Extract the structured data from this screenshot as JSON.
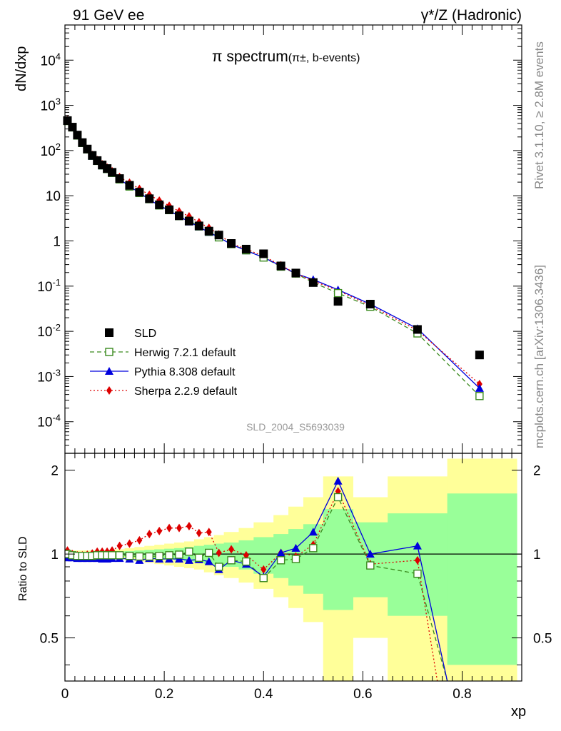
{
  "header": {
    "left": "91 GeV ee",
    "right_main": "γ*/Z",
    "right_paren": " (Hadronic)"
  },
  "side_text": {
    "rivet": "Rivet 3.1.10, ≥ 2.8M events",
    "mcplots": "mcplots.cern.ch [arXiv:1306.3436]"
  },
  "watermark": "SLD_2004_S5693039",
  "colors": {
    "data": "#000000",
    "herwig": "#3a8a1e",
    "pythia": "#0000dd",
    "sherpa": "#dd0000",
    "band_inner": "#99ff99",
    "band_outer": "#ffff99"
  },
  "chart_data": [
    {
      "type": "scatter",
      "title": "π spectrum",
      "subtitle": "(π±, b-events)",
      "ylabel": "dN/dxp",
      "yscale": "log",
      "ylim": [
        2e-05,
        60000
      ],
      "xlim": [
        0,
        0.92
      ],
      "ytick_labels": [
        "10^-4",
        "10^-3",
        "10^-2",
        "10^-1",
        "1",
        "10",
        "10^2",
        "10^3",
        "10^4"
      ],
      "legend_placement": "bottom-left",
      "series": [
        {
          "name": "SLD",
          "marker": "square-filled",
          "x": [
            0.005,
            0.015,
            0.025,
            0.035,
            0.045,
            0.055,
            0.065,
            0.075,
            0.085,
            0.095,
            0.11,
            0.13,
            0.15,
            0.17,
            0.19,
            0.21,
            0.23,
            0.25,
            0.27,
            0.29,
            0.31,
            0.335,
            0.365,
            0.4,
            0.435,
            0.465,
            0.5,
            0.55,
            0.615,
            0.71,
            0.835
          ],
          "y": [
            460,
            330,
            220,
            150,
            108,
            78,
            60,
            48,
            40,
            33,
            24,
            17,
            12,
            8.6,
            6.3,
            4.9,
            3.6,
            2.75,
            2.15,
            1.65,
            1.35,
            0.88,
            0.66,
            0.52,
            0.28,
            0.195,
            0.12,
            0.046,
            0.04,
            0.011,
            0.003
          ]
        },
        {
          "name": "Herwig 7.2.1 default",
          "marker": "square-open",
          "line": "dashed",
          "x": [
            0.005,
            0.015,
            0.025,
            0.035,
            0.045,
            0.055,
            0.065,
            0.075,
            0.085,
            0.095,
            0.11,
            0.13,
            0.15,
            0.17,
            0.19,
            0.21,
            0.23,
            0.25,
            0.27,
            0.29,
            0.31,
            0.335,
            0.365,
            0.4,
            0.435,
            0.465,
            0.5,
            0.55,
            0.615,
            0.71,
            0.835
          ],
          "y": [
            450,
            325,
            215,
            147,
            106,
            77,
            59,
            47,
            39,
            32,
            23,
            16,
            11.5,
            8.4,
            6.1,
            4.8,
            3.55,
            2.8,
            2.1,
            1.6,
            1.2,
            0.85,
            0.62,
            0.43,
            0.27,
            0.19,
            0.12,
            0.07,
            0.035,
            0.009,
            0.00037
          ]
        },
        {
          "name": "Pythia 8.308 default",
          "marker": "triangle-filled",
          "line": "solid",
          "x": [
            0.005,
            0.015,
            0.025,
            0.035,
            0.045,
            0.055,
            0.065,
            0.075,
            0.085,
            0.095,
            0.11,
            0.13,
            0.15,
            0.17,
            0.19,
            0.21,
            0.23,
            0.25,
            0.27,
            0.29,
            0.31,
            0.335,
            0.365,
            0.4,
            0.435,
            0.465,
            0.5,
            0.55,
            0.615,
            0.71,
            0.835
          ],
          "y": [
            445,
            320,
            210,
            145,
            104,
            75,
            58,
            46,
            38,
            31.5,
            23.5,
            16.2,
            11.6,
            8.3,
            6.0,
            4.7,
            3.5,
            2.65,
            2.05,
            1.55,
            1.2,
            0.84,
            0.61,
            0.43,
            0.28,
            0.19,
            0.14,
            0.083,
            0.04,
            0.0115,
            0.00055
          ]
        },
        {
          "name": "Sherpa 2.2.9 default",
          "marker": "diamond-filled",
          "line": "dotted",
          "x": [
            0.005,
            0.015,
            0.025,
            0.035,
            0.045,
            0.055,
            0.065,
            0.075,
            0.085,
            0.095,
            0.11,
            0.13,
            0.15,
            0.17,
            0.19,
            0.21,
            0.23,
            0.25,
            0.27,
            0.29,
            0.31,
            0.335,
            0.365,
            0.4,
            0.435,
            0.465,
            0.5,
            0.55,
            0.615,
            0.71,
            0.835
          ],
          "y": [
            475,
            330,
            218,
            150,
            108,
            80,
            62,
            50,
            42,
            35,
            26,
            19.5,
            14.2,
            10.5,
            7.8,
            6.0,
            4.5,
            3.5,
            2.6,
            1.95,
            1.4,
            0.88,
            0.66,
            0.46,
            0.29,
            0.19,
            0.13,
            0.08,
            0.037,
            0.0105,
            0.00068
          ]
        }
      ]
    },
    {
      "type": "scatter",
      "xlabel": "xp",
      "ylabel": "Ratio to SLD",
      "ylim": [
        0.35,
        2.3
      ],
      "xlim": [
        0,
        0.92
      ],
      "xticks": [
        0,
        0.2,
        0.4,
        0.6,
        0.8
      ],
      "yticks": [
        0.5,
        1,
        2
      ],
      "reference_line": 1,
      "bands": {
        "edges": [
          0,
          0.01,
          0.02,
          0.03,
          0.04,
          0.05,
          0.06,
          0.07,
          0.08,
          0.09,
          0.1,
          0.12,
          0.14,
          0.16,
          0.18,
          0.2,
          0.22,
          0.24,
          0.26,
          0.28,
          0.3,
          0.32,
          0.35,
          0.38,
          0.42,
          0.45,
          0.48,
          0.52,
          0.58,
          0.65,
          0.77,
          0.91
        ],
        "inner_lo": [
          0.98,
          0.985,
          0.985,
          0.985,
          0.985,
          0.985,
          0.985,
          0.985,
          0.985,
          0.985,
          0.98,
          0.975,
          0.97,
          0.965,
          0.96,
          0.955,
          0.95,
          0.94,
          0.93,
          0.92,
          0.91,
          0.9,
          0.88,
          0.85,
          0.82,
          0.77,
          0.72,
          0.63,
          0.7,
          0.6,
          0.4
        ],
        "inner_hi": [
          1.02,
          1.015,
          1.015,
          1.015,
          1.015,
          1.015,
          1.015,
          1.015,
          1.015,
          1.015,
          1.02,
          1.025,
          1.03,
          1.035,
          1.04,
          1.045,
          1.05,
          1.06,
          1.07,
          1.08,
          1.09,
          1.1,
          1.12,
          1.15,
          1.18,
          1.23,
          1.28,
          1.45,
          1.3,
          1.4,
          1.65
        ],
        "outer_lo": [
          0.96,
          0.97,
          0.97,
          0.97,
          0.97,
          0.97,
          0.97,
          0.97,
          0.97,
          0.97,
          0.96,
          0.95,
          0.94,
          0.93,
          0.92,
          0.91,
          0.9,
          0.89,
          0.88,
          0.86,
          0.84,
          0.82,
          0.79,
          0.75,
          0.7,
          0.64,
          0.57,
          0.3,
          0.5,
          0.35,
          0.3
        ],
        "outer_hi": [
          1.04,
          1.03,
          1.03,
          1.03,
          1.03,
          1.03,
          1.03,
          1.03,
          1.03,
          1.03,
          1.04,
          1.05,
          1.06,
          1.07,
          1.08,
          1.09,
          1.1,
          1.11,
          1.13,
          1.15,
          1.17,
          1.2,
          1.24,
          1.3,
          1.38,
          1.48,
          1.6,
          1.9,
          1.6,
          1.9,
          2.2
        ]
      },
      "series": [
        {
          "name": "Herwig 7.2.1 default",
          "marker": "square-open",
          "line": "dashed",
          "x": [
            0.005,
            0.015,
            0.025,
            0.035,
            0.045,
            0.055,
            0.065,
            0.075,
            0.085,
            0.095,
            0.11,
            0.13,
            0.15,
            0.17,
            0.19,
            0.21,
            0.23,
            0.25,
            0.27,
            0.29,
            0.31,
            0.335,
            0.365,
            0.4,
            0.435,
            0.465,
            0.5,
            0.55,
            0.615,
            0.71,
            0.77
          ],
          "y": [
            1.0,
            0.99,
            0.985,
            0.985,
            0.985,
            0.985,
            0.99,
            0.99,
            0.99,
            0.99,
            0.99,
            0.985,
            0.98,
            0.98,
            0.985,
            0.99,
            0.995,
            1.02,
            0.97,
            1.01,
            0.9,
            0.95,
            0.94,
            0.82,
            0.95,
            0.96,
            1.05,
            1.6,
            0.91,
            0.85,
            0.3
          ]
        },
        {
          "name": "Pythia 8.308 default",
          "marker": "triangle-filled",
          "line": "solid",
          "x": [
            0.005,
            0.015,
            0.025,
            0.035,
            0.045,
            0.055,
            0.065,
            0.075,
            0.085,
            0.095,
            0.11,
            0.13,
            0.15,
            0.17,
            0.19,
            0.21,
            0.23,
            0.25,
            0.27,
            0.29,
            0.31,
            0.335,
            0.365,
            0.4,
            0.435,
            0.465,
            0.5,
            0.55,
            0.615,
            0.71,
            0.77
          ],
          "y": [
            0.97,
            0.97,
            0.965,
            0.965,
            0.965,
            0.965,
            0.965,
            0.96,
            0.96,
            0.965,
            0.965,
            0.96,
            0.95,
            0.965,
            0.96,
            0.96,
            0.96,
            0.95,
            0.955,
            0.94,
            0.88,
            0.95,
            0.92,
            0.83,
            1.01,
            1.05,
            1.2,
            1.83,
            1.0,
            1.07,
            0.3
          ]
        },
        {
          "name": "Sherpa 2.2.9 default",
          "marker": "diamond-filled",
          "line": "dotted",
          "x": [
            0.005,
            0.015,
            0.025,
            0.035,
            0.045,
            0.055,
            0.065,
            0.075,
            0.085,
            0.095,
            0.11,
            0.13,
            0.15,
            0.17,
            0.19,
            0.21,
            0.23,
            0.25,
            0.27,
            0.29,
            0.31,
            0.335,
            0.365,
            0.4,
            0.435,
            0.465,
            0.5,
            0.55,
            0.615,
            0.71,
            0.75
          ],
          "y": [
            1.03,
            1.0,
            0.99,
            0.99,
            0.995,
            1.005,
            1.02,
            1.02,
            1.02,
            1.03,
            1.07,
            1.09,
            1.12,
            1.18,
            1.21,
            1.24,
            1.24,
            1.26,
            1.19,
            1.2,
            1.01,
            1.04,
            0.99,
            0.88,
            1.01,
            0.98,
            1.08,
            1.68,
            0.92,
            0.95,
            0.3
          ]
        }
      ]
    }
  ]
}
